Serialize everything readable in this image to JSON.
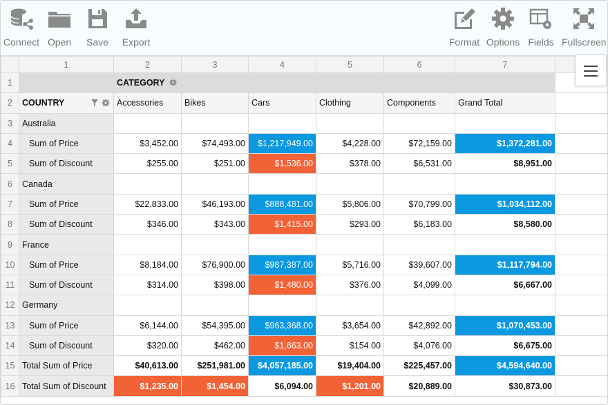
{
  "toolbar": {
    "left": [
      {
        "id": "connect",
        "label": "Connect",
        "icon": "database-connect-icon"
      },
      {
        "id": "open",
        "label": "Open",
        "icon": "folder-icon"
      },
      {
        "id": "save",
        "label": "Save",
        "icon": "floppy-disk-icon"
      },
      {
        "id": "export",
        "label": "Export",
        "icon": "export-upload-icon"
      }
    ],
    "right": [
      {
        "id": "format",
        "label": "Format",
        "icon": "pencil-edit-icon"
      },
      {
        "id": "options",
        "label": "Options",
        "icon": "gear-icon"
      },
      {
        "id": "fields",
        "label": "Fields",
        "icon": "fields-settings-icon"
      },
      {
        "id": "fullscreen",
        "label": "Fullscreen",
        "icon": "fullscreen-icon"
      }
    ]
  },
  "colors": {
    "blue": "#0a98e0",
    "red": "#f26237",
    "header_gray": "#dcdcdc"
  },
  "column_numbers": [
    "1",
    "2",
    "3",
    "4",
    "5",
    "6",
    "7"
  ],
  "category_label": "CATEGORY",
  "country_label": "COUNTRY",
  "categories": [
    "Accessories",
    "Bikes",
    "Cars",
    "Clothing",
    "Components",
    "Grand Total"
  ],
  "rows": [
    {
      "num": "3",
      "label": "Australia",
      "type": "group"
    },
    {
      "num": "4",
      "label": "Sum of Price",
      "type": "measure",
      "values": [
        "$3,452.00",
        "$74,493.00",
        "$1,217,949.00",
        "$4,228.00",
        "$72,159.00",
        "$1,372,281.00"
      ],
      "hl": [
        "",
        "",
        "blue",
        "",
        "",
        "blue"
      ]
    },
    {
      "num": "5",
      "label": "Sum of Discount",
      "type": "measure",
      "values": [
        "$255.00",
        "$251.00",
        "$1,536.00",
        "$378.00",
        "$6,531.00",
        "$8,951.00"
      ],
      "hl": [
        "",
        "",
        "red",
        "",
        "",
        ""
      ]
    },
    {
      "num": "6",
      "label": "Canada",
      "type": "group"
    },
    {
      "num": "7",
      "label": "Sum of Price",
      "type": "measure",
      "values": [
        "$22,833.00",
        "$46,193.00",
        "$888,481.00",
        "$5,806.00",
        "$70,799.00",
        "$1,034,112.00"
      ],
      "hl": [
        "",
        "",
        "blue",
        "",
        "",
        "blue"
      ]
    },
    {
      "num": "8",
      "label": "Sum of Discount",
      "type": "measure",
      "values": [
        "$346.00",
        "$343.00",
        "$1,415.00",
        "$293.00",
        "$6,183.00",
        "$8,580.00"
      ],
      "hl": [
        "",
        "",
        "red",
        "",
        "",
        ""
      ]
    },
    {
      "num": "9",
      "label": "France",
      "type": "group"
    },
    {
      "num": "10",
      "label": "Sum of Price",
      "type": "measure",
      "values": [
        "$8,184.00",
        "$76,900.00",
        "$987,387.00",
        "$5,716.00",
        "$39,607.00",
        "$1,117,794.00"
      ],
      "hl": [
        "",
        "",
        "blue",
        "",
        "",
        "blue"
      ]
    },
    {
      "num": "11",
      "label": "Sum of Discount",
      "type": "measure",
      "values": [
        "$314.00",
        "$398.00",
        "$1,480.00",
        "$376.00",
        "$4,099.00",
        "$6,667.00"
      ],
      "hl": [
        "",
        "",
        "red",
        "",
        "",
        ""
      ]
    },
    {
      "num": "12",
      "label": "Germany",
      "type": "group"
    },
    {
      "num": "13",
      "label": "Sum of Price",
      "type": "measure",
      "values": [
        "$6,144.00",
        "$54,395.00",
        "$963,368.00",
        "$3,654.00",
        "$42,892.00",
        "$1,070,453.00"
      ],
      "hl": [
        "",
        "",
        "blue",
        "",
        "",
        "blue"
      ]
    },
    {
      "num": "14",
      "label": "Sum of Discount",
      "type": "measure",
      "values": [
        "$320.00",
        "$462.00",
        "$1,663.00",
        "$154.00",
        "$4,076.00",
        "$6,675.00"
      ],
      "hl": [
        "",
        "",
        "red",
        "",
        "",
        ""
      ]
    },
    {
      "num": "15",
      "label": "Total Sum of Price",
      "type": "total",
      "values": [
        "$40,613.00",
        "$251,981.00",
        "$4,057,185.00",
        "$19,404.00",
        "$225,457.00",
        "$4,594,640.00"
      ],
      "hl": [
        "",
        "",
        "blue",
        "",
        "",
        "blue"
      ]
    },
    {
      "num": "16",
      "label": "Total Sum of Discount",
      "type": "total",
      "values": [
        "$1,235.00",
        "$1,454.00",
        "$6,094.00",
        "$1,201.00",
        "$20,889.00",
        "$30,873.00"
      ],
      "hl": [
        "red",
        "red",
        "",
        "red",
        "",
        ""
      ]
    }
  ]
}
